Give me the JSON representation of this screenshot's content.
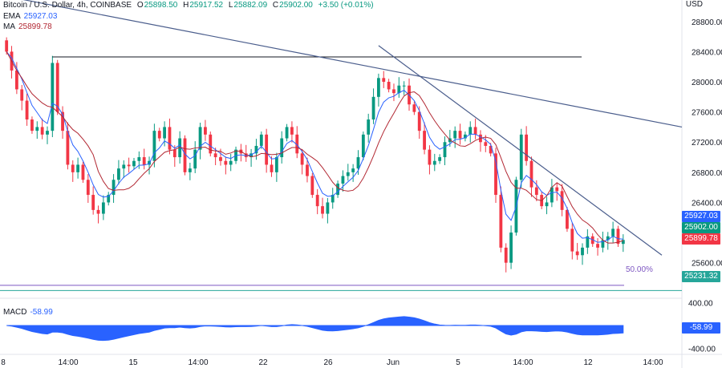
{
  "header": {
    "symbol": "Bitcoin / U.S. Dollar, 4h, COINBASE",
    "o_label": "O",
    "o_value": "25898.50",
    "h_label": "H",
    "h_value": "25917.52",
    "l_label": "L",
    "l_value": "25882.09",
    "c_label": "C",
    "c_value": "25902.00",
    "change": "+3.50 (+0.01%)",
    "ema_label": "EMA",
    "ema_value": "25927.03",
    "ma_label": "MA",
    "ma_value": "25899.78",
    "currency": "USD"
  },
  "price_tags": {
    "ema": "25927.03",
    "close": "25902.00",
    "ma": "25899.78",
    "fib_level": "25231.32",
    "macd": "-58.99"
  },
  "fib_label": "50.00%",
  "macd_header": {
    "label": "MACD",
    "value": "-58.99"
  },
  "colors": {
    "up": "#089981",
    "down": "#f23645",
    "ema": "#2962ff",
    "ma": "#b22833",
    "trendline": "#4a5d8c",
    "fib": "#7e57c2",
    "fib_level": "#26a69a",
    "macd_fill": "#2962ff"
  },
  "chart_data": {
    "type": "candlestick",
    "price_axis": {
      "ticks": [
        "28800.00",
        "28400.00",
        "28000.00",
        "27600.00",
        "27200.00",
        "26800.00",
        "26400.00",
        "25600.00"
      ],
      "range": [
        25150,
        29000
      ]
    },
    "macd_axis": {
      "ticks": [
        "400.00",
        "-400.00"
      ],
      "range": [
        -480,
        480
      ]
    },
    "x_ticks": [
      "8",
      "14:00",
      "15",
      "14:00",
      "22",
      "26",
      "Jun",
      "5",
      "14:00",
      "12",
      "14:00"
    ],
    "close_series": [
      28400,
      28150,
      27900,
      27750,
      27500,
      27350,
      27400,
      27300,
      27350,
      28250,
      27600,
      27350,
      26900,
      26800,
      26900,
      26700,
      26500,
      26300,
      26250,
      26400,
      26500,
      26700,
      26850,
      26900,
      26880,
      26950,
      27000,
      26900,
      26950,
      27350,
      27250,
      27400,
      27100,
      27000,
      27250,
      26800,
      26850,
      27100,
      27400,
      27300,
      27050,
      27000,
      26950,
      26900,
      26950,
      27100,
      27050,
      27000,
      27050,
      27150,
      27300,
      26900,
      26800,
      27000,
      27250,
      27400,
      27300,
      27050,
      26900,
      26750,
      26500,
      26350,
      26250,
      26400,
      26500,
      26650,
      26750,
      26800,
      26850,
      27000,
      27300,
      27500,
      27800,
      28050,
      28000,
      27900,
      27850,
      27950,
      27950,
      27700,
      27600,
      27350,
      27100,
      26900,
      26950,
      27000,
      27200,
      27250,
      27350,
      27250,
      27300,
      27400,
      27300,
      27200,
      27150,
      27050,
      26500,
      25800,
      25600,
      26000,
      26700,
      27300,
      26950,
      26600,
      26500,
      26350,
      26400,
      26600,
      26550,
      26300,
      26050,
      25750,
      25700,
      25800,
      25950,
      25850,
      25800,
      25900,
      25950,
      26050,
      25850,
      25902
    ],
    "ema_last": 25927.03,
    "ma_last": 25899.78,
    "horizontal_resistance": 28330,
    "fib_50_level": 25231.32,
    "macd_last": -58.99
  }
}
